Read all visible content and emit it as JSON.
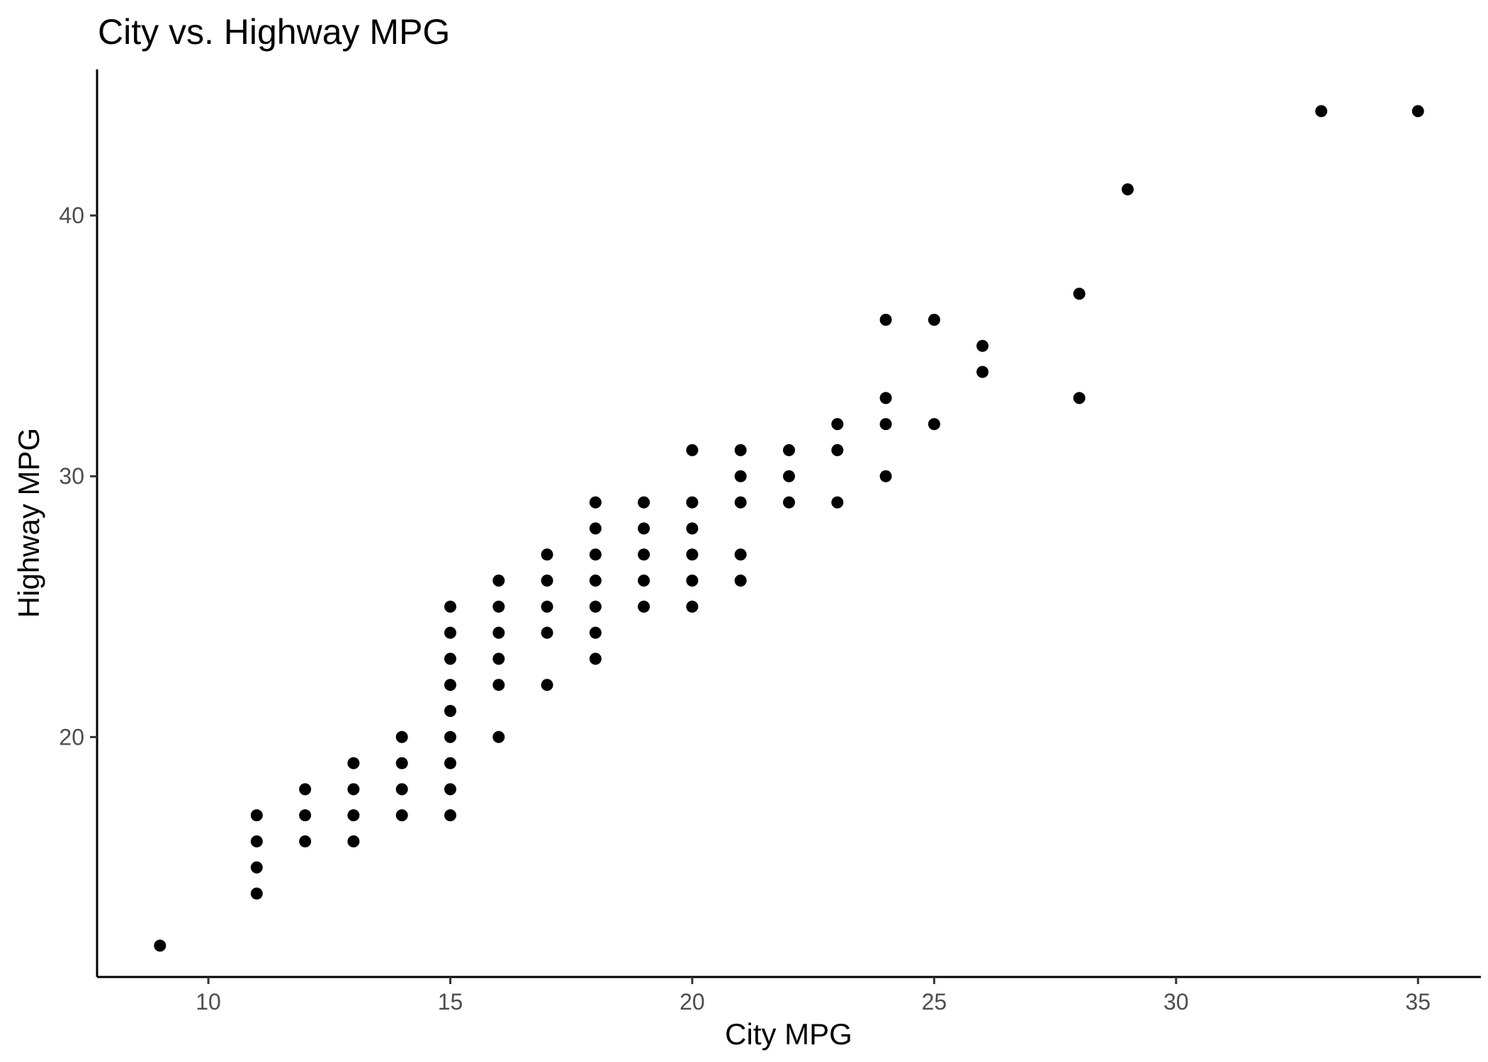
{
  "chart_data": {
    "type": "scatter",
    "title": "City vs. Highway MPG",
    "xlabel": "City MPG",
    "ylabel": "Highway MPG",
    "xlim": [
      7.7,
      36.3
    ],
    "ylim": [
      10.8,
      45.6
    ],
    "xticks": [
      10,
      15,
      20,
      25,
      30,
      35
    ],
    "yticks": [
      20,
      30,
      40
    ],
    "grid": false,
    "legend": "none",
    "point_color": "#000000",
    "points": [
      [
        9,
        12
      ],
      [
        11,
        14
      ],
      [
        11,
        15
      ],
      [
        11,
        16
      ],
      [
        11,
        17
      ],
      [
        12,
        16
      ],
      [
        12,
        17
      ],
      [
        12,
        18
      ],
      [
        13,
        16
      ],
      [
        13,
        17
      ],
      [
        13,
        18
      ],
      [
        13,
        19
      ],
      [
        14,
        17
      ],
      [
        14,
        18
      ],
      [
        14,
        19
      ],
      [
        14,
        20
      ],
      [
        15,
        17
      ],
      [
        15,
        18
      ],
      [
        15,
        19
      ],
      [
        15,
        20
      ],
      [
        15,
        21
      ],
      [
        15,
        22
      ],
      [
        15,
        23
      ],
      [
        15,
        24
      ],
      [
        15,
        25
      ],
      [
        16,
        20
      ],
      [
        16,
        22
      ],
      [
        16,
        23
      ],
      [
        16,
        24
      ],
      [
        16,
        25
      ],
      [
        16,
        26
      ],
      [
        17,
        22
      ],
      [
        17,
        24
      ],
      [
        17,
        25
      ],
      [
        17,
        26
      ],
      [
        17,
        27
      ],
      [
        18,
        23
      ],
      [
        18,
        24
      ],
      [
        18,
        25
      ],
      [
        18,
        26
      ],
      [
        18,
        27
      ],
      [
        18,
        28
      ],
      [
        18,
        29
      ],
      [
        19,
        25
      ],
      [
        19,
        26
      ],
      [
        19,
        27
      ],
      [
        19,
        28
      ],
      [
        19,
        29
      ],
      [
        20,
        25
      ],
      [
        20,
        26
      ],
      [
        20,
        27
      ],
      [
        20,
        28
      ],
      [
        20,
        29
      ],
      [
        20,
        31
      ],
      [
        21,
        26
      ],
      [
        21,
        27
      ],
      [
        21,
        29
      ],
      [
        21,
        30
      ],
      [
        21,
        31
      ],
      [
        22,
        29
      ],
      [
        22,
        30
      ],
      [
        22,
        31
      ],
      [
        23,
        29
      ],
      [
        23,
        31
      ],
      [
        23,
        32
      ],
      [
        24,
        30
      ],
      [
        24,
        32
      ],
      [
        24,
        33
      ],
      [
        24,
        36
      ],
      [
        25,
        32
      ],
      [
        25,
        36
      ],
      [
        26,
        34
      ],
      [
        26,
        35
      ],
      [
        28,
        33
      ],
      [
        28,
        37
      ],
      [
        29,
        41
      ],
      [
        33,
        44
      ],
      [
        35,
        44
      ]
    ]
  }
}
